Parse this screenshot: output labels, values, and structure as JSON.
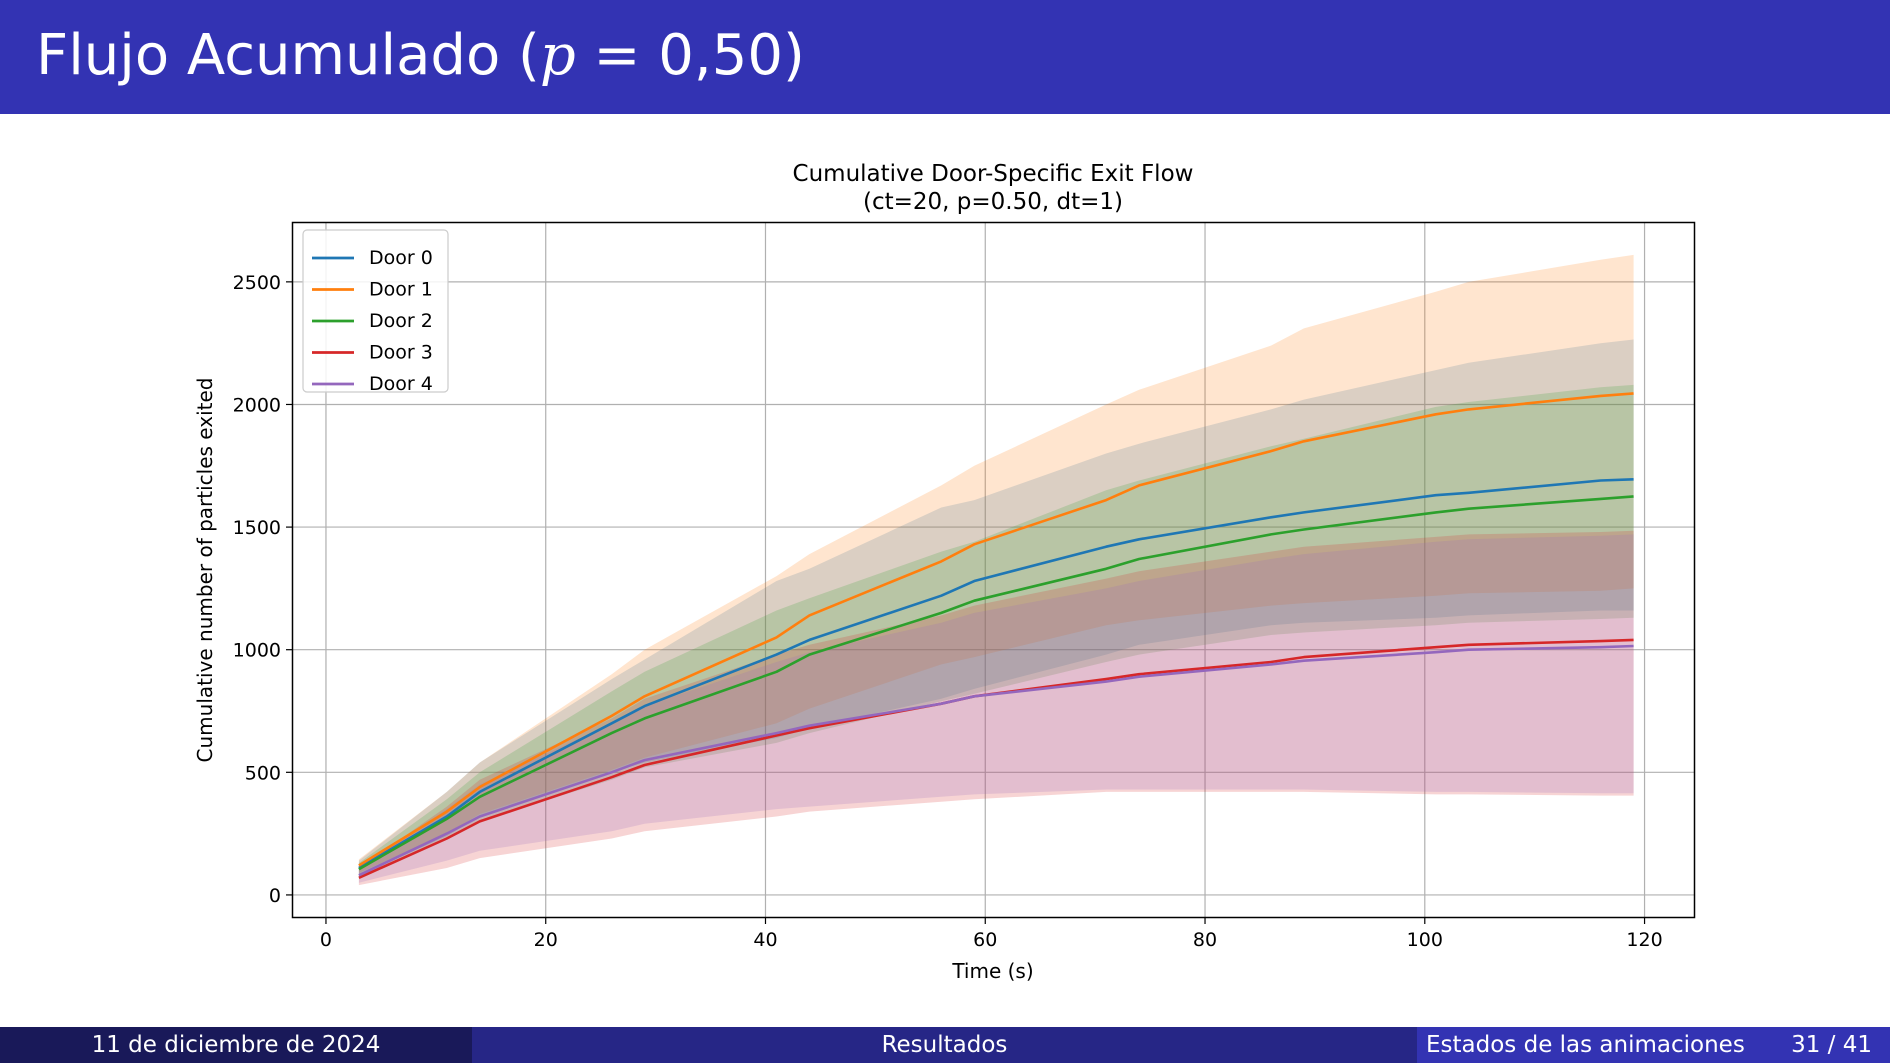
{
  "slide": {
    "title_text": "Flujo Acumulado (",
    "title_p": "p",
    "title_rest": " = 0,50)"
  },
  "footer": {
    "date": "11 de diciembre de 2024",
    "section": "Resultados",
    "subsection": "Estados de las animaciones",
    "page": "31 / 41"
  },
  "chart_data": {
    "type": "line",
    "title": "Cumulative Door-Specific Exit Flow",
    "subtitle": "(ct=20, p=0.50, dt=1)",
    "xlabel": "Time (s)",
    "ylabel": "Cumulative number of particles exited",
    "xlim": [
      -3,
      124.5
    ],
    "ylim": [
      -90,
      2740
    ],
    "xticks": [
      0,
      20,
      40,
      60,
      80,
      100,
      120
    ],
    "yticks": [
      0,
      500,
      1000,
      1500,
      2000,
      2500
    ],
    "grid": true,
    "legend_position": "top-left",
    "x": [
      3,
      11,
      14,
      26,
      29,
      41,
      44,
      56,
      59,
      71,
      74,
      86,
      89,
      101,
      104,
      116,
      119
    ],
    "series": [
      {
        "name": "Door 0",
        "color": "#1f77b4",
        "values": [
          110,
          320,
          420,
          700,
          770,
          980,
          1040,
          1220,
          1280,
          1420,
          1450,
          1540,
          1560,
          1630,
          1640,
          1690,
          1695
        ],
        "lower": [
          80,
          240,
          320,
          500,
          540,
          640,
          680,
          800,
          840,
          980,
          1020,
          1100,
          1110,
          1130,
          1140,
          1160,
          1160
        ],
        "upper": [
          140,
          420,
          540,
          880,
          960,
          1280,
          1330,
          1580,
          1610,
          1800,
          1840,
          1980,
          2020,
          2140,
          2170,
          2250,
          2265
        ]
      },
      {
        "name": "Door 1",
        "color": "#ff7f0e",
        "values": [
          120,
          340,
          440,
          730,
          810,
          1050,
          1140,
          1360,
          1430,
          1610,
          1670,
          1810,
          1850,
          1960,
          1980,
          2035,
          2045
        ],
        "lower": [
          90,
          250,
          330,
          510,
          560,
          700,
          760,
          940,
          970,
          1100,
          1120,
          1180,
          1190,
          1220,
          1230,
          1240,
          1250
        ],
        "upper": [
          145,
          420,
          540,
          900,
          1000,
          1300,
          1390,
          1670,
          1750,
          2000,
          2060,
          2240,
          2310,
          2460,
          2500,
          2590,
          2610
        ]
      },
      {
        "name": "Door 2",
        "color": "#2ca02c",
        "values": [
          105,
          310,
          400,
          660,
          720,
          910,
          980,
          1150,
          1200,
          1330,
          1370,
          1470,
          1490,
          1560,
          1575,
          1615,
          1625
        ],
        "lower": [
          75,
          230,
          300,
          470,
          520,
          620,
          660,
          790,
          820,
          950,
          980,
          1060,
          1070,
          1100,
          1110,
          1125,
          1130
        ],
        "upper": [
          130,
          390,
          500,
          830,
          910,
          1160,
          1210,
          1400,
          1440,
          1650,
          1690,
          1830,
          1860,
          1990,
          2010,
          2070,
          2080
        ]
      },
      {
        "name": "Door 3",
        "color": "#d62728",
        "values": [
          70,
          230,
          300,
          480,
          530,
          650,
          680,
          780,
          810,
          880,
          900,
          950,
          970,
          1010,
          1020,
          1035,
          1040
        ],
        "lower": [
          40,
          110,
          150,
          230,
          260,
          320,
          340,
          380,
          390,
          420,
          420,
          420,
          420,
          410,
          410,
          405,
          405
        ],
        "upper": [
          110,
          360,
          470,
          720,
          800,
          980,
          1020,
          1140,
          1180,
          1290,
          1320,
          1400,
          1420,
          1460,
          1470,
          1480,
          1485
        ]
      },
      {
        "name": "Door 4",
        "color": "#9467bd",
        "values": [
          80,
          250,
          320,
          500,
          550,
          660,
          690,
          780,
          810,
          870,
          890,
          940,
          955,
          990,
          1000,
          1010,
          1015
        ],
        "lower": [
          50,
          140,
          180,
          260,
          290,
          350,
          360,
          400,
          410,
          430,
          430,
          430,
          430,
          420,
          420,
          415,
          415
        ],
        "upper": [
          110,
          350,
          450,
          700,
          770,
          950,
          990,
          1110,
          1150,
          1250,
          1280,
          1370,
          1390,
          1440,
          1450,
          1465,
          1470
        ]
      }
    ]
  }
}
